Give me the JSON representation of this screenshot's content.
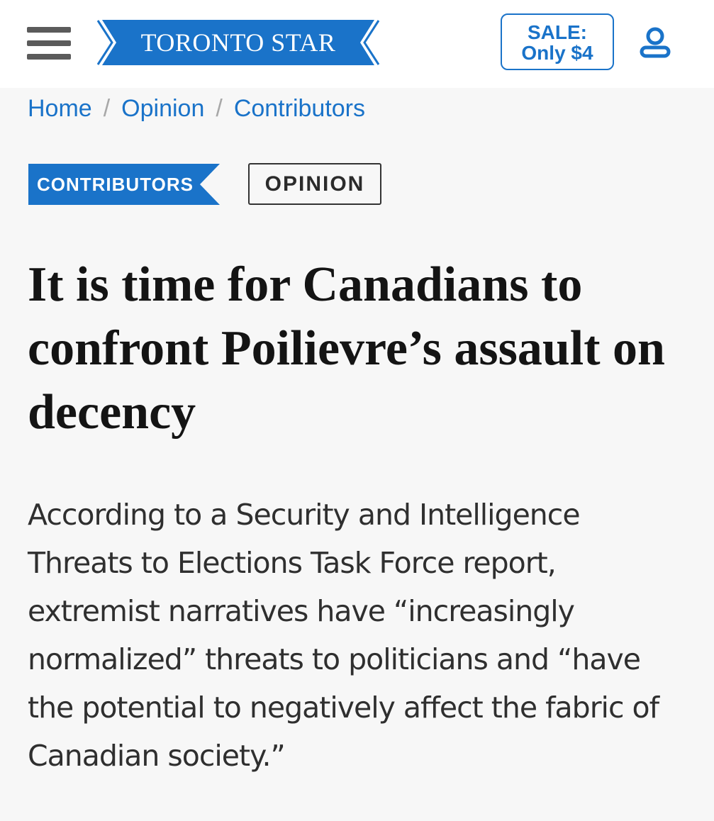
{
  "header": {
    "menu_icon": "hamburger-menu-icon",
    "logo_text": "TORONTO STAR",
    "sale_line1": "SALE:",
    "sale_line2": "Only $4",
    "user_icon": "user-account-icon",
    "brand_color": "#1a73c9"
  },
  "breadcrumb": {
    "items": [
      "Home",
      "Opinion",
      "Contributors"
    ],
    "separator": "/"
  },
  "tags": {
    "section": "CONTRIBUTORS",
    "type": "OPINION"
  },
  "article": {
    "headline": "It is time for Canadians to confront Poilievre’s assault on decency",
    "deck": "According to a Security and Intelligence Threats to Elections Task Force report, extremist narratives have “increasingly normalized” threats to politicians and “have the potential to negatively affect the fabric of Canadian society.”"
  }
}
